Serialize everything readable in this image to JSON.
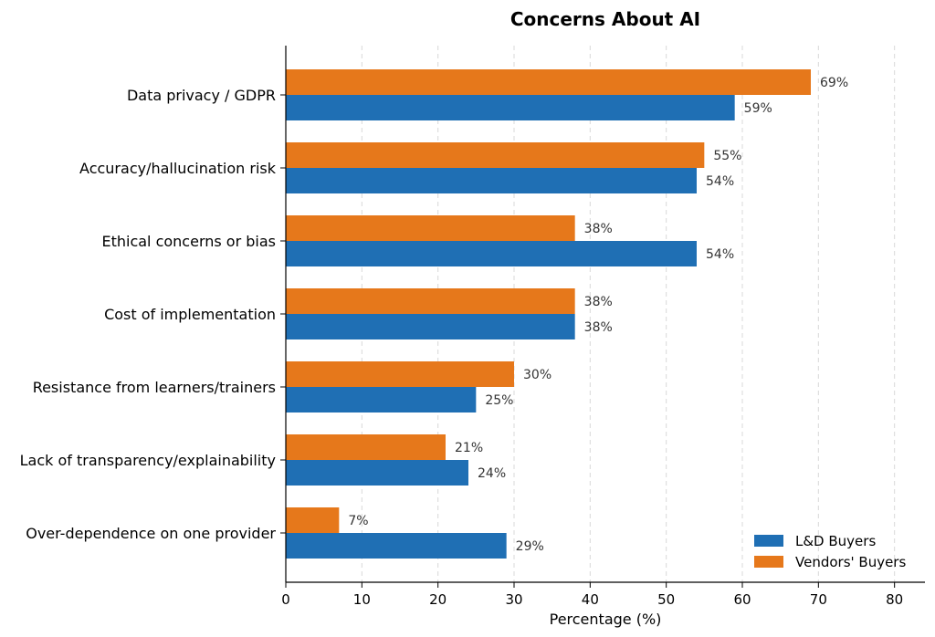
{
  "chart_data": {
    "type": "bar",
    "orientation": "horizontal",
    "title": "Concerns About AI",
    "xlabel": "Percentage (%)",
    "ylabel": "",
    "xlim": [
      0,
      84
    ],
    "xticks": [
      0,
      10,
      20,
      30,
      40,
      50,
      60,
      70,
      80
    ],
    "grid": "vertical dashed",
    "legend_position": "bottom-right",
    "value_suffix": "%",
    "categories": [
      "Data privacy / GDPR",
      "Accuracy/hallucination risk",
      "Ethical concerns or bias",
      "Cost of implementation",
      "Resistance from learners/trainers",
      "Lack of transparency/explainability",
      "Over-dependence on one provider"
    ],
    "series": [
      {
        "name": "L&D Buyers",
        "color": "#1f6fb4",
        "values": [
          59,
          54,
          54,
          38,
          25,
          24,
          29
        ]
      },
      {
        "name": "Vendors' Buyers",
        "color": "#e6781b",
        "values": [
          69,
          55,
          38,
          38,
          30,
          21,
          7
        ]
      }
    ]
  }
}
